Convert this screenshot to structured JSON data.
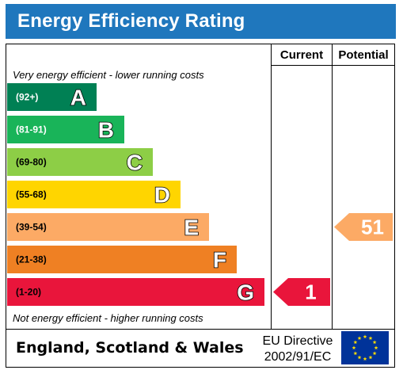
{
  "header": {
    "title": "Energy Efficiency Rating"
  },
  "columns": {
    "current": "Current",
    "potential": "Potential"
  },
  "notes": {
    "top": "Very energy efficient - lower running costs",
    "bottom": "Not energy efficient - higher running costs"
  },
  "footer": {
    "country": "England, Scotland & Wales",
    "directive_line1": "EU Directive",
    "directive_line2": "2002/91/EC"
  },
  "chart_data": {
    "type": "bar",
    "title": "Energy Efficiency Rating",
    "bands": [
      {
        "letter": "A",
        "range": "(92+)",
        "min": 92,
        "max": 100,
        "color": "#008054",
        "range_color": "#ffffff"
      },
      {
        "letter": "B",
        "range": "(81-91)",
        "min": 81,
        "max": 91,
        "color": "#19b459",
        "range_color": "#ffffff"
      },
      {
        "letter": "C",
        "range": "(69-80)",
        "min": 69,
        "max": 80,
        "color": "#8dce46",
        "range_color": "#000000"
      },
      {
        "letter": "D",
        "range": "(55-68)",
        "min": 55,
        "max": 68,
        "color": "#ffd500",
        "range_color": "#000000"
      },
      {
        "letter": "E",
        "range": "(39-54)",
        "min": 39,
        "max": 54,
        "color": "#fcaa65",
        "range_color": "#000000"
      },
      {
        "letter": "F",
        "range": "(21-38)",
        "min": 21,
        "max": 38,
        "color": "#ef8023",
        "range_color": "#000000"
      },
      {
        "letter": "G",
        "range": "(1-20)",
        "min": 1,
        "max": 20,
        "color": "#e9153b",
        "range_color": "#000000"
      }
    ],
    "ratings": {
      "current": {
        "value": 1,
        "band": "G",
        "color": "#e9153b"
      },
      "potential": {
        "value": 51,
        "band": "E",
        "color": "#fcaa65"
      }
    }
  }
}
